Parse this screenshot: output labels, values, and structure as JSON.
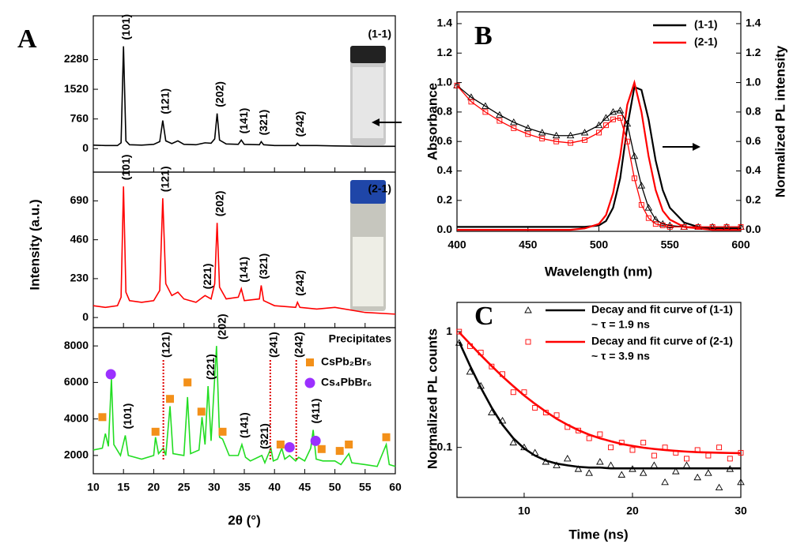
{
  "chart_data": [
    {
      "type": "line",
      "panel_label": "A",
      "title": "(1-1)",
      "color": "#000000",
      "xlim": [
        10,
        60
      ],
      "ylim": [
        -600,
        3400
      ],
      "yticks": [
        0,
        760,
        1520,
        2280
      ],
      "x": [
        10,
        12,
        14,
        14.6,
        15,
        15.4,
        16,
        18,
        20,
        21,
        21.5,
        22,
        23,
        24,
        25,
        27,
        28.5,
        29.5,
        30.1,
        30.5,
        30.9,
        32,
        34,
        34.5,
        35,
        37.5,
        37.8,
        38.2,
        40,
        43.5,
        43.8,
        44.2,
        47,
        50,
        55,
        60
      ],
      "values": [
        90,
        80,
        80,
        150,
        2620,
        200,
        100,
        90,
        110,
        180,
        720,
        200,
        130,
        200,
        110,
        100,
        150,
        140,
        250,
        900,
        220,
        120,
        110,
        220,
        110,
        100,
        180,
        100,
        80,
        80,
        140,
        80,
        80,
        70,
        60,
        60
      ],
      "peak_labels": [
        {
          "label": "(101)",
          "x": 15
        },
        {
          "label": "(121)",
          "x": 21.5
        },
        {
          "label": "(202)",
          "x": 30.5
        },
        {
          "label": "(141)",
          "x": 34.5
        },
        {
          "label": "(321)",
          "x": 37.8
        },
        {
          "label": "(242)",
          "x": 43.8
        }
      ]
    },
    {
      "type": "line",
      "title": "(2-1)",
      "ylabel": "Intensity (a.u.)",
      "color": "#ff0000",
      "xlim": [
        10,
        60
      ],
      "ylim": [
        -60,
        860
      ],
      "yticks": [
        0,
        230,
        460,
        690
      ],
      "x": [
        10,
        12,
        14,
        14.6,
        15,
        15.4,
        16,
        18,
        20,
        21,
        21.5,
        22,
        23,
        24,
        25,
        27,
        28.5,
        29.5,
        30.1,
        30.5,
        30.9,
        32,
        34,
        34.5,
        35,
        37.5,
        37.8,
        38.2,
        40,
        43.5,
        43.8,
        44.2,
        47,
        50,
        55,
        60
      ],
      "values": [
        70,
        60,
        70,
        120,
        775,
        150,
        100,
        90,
        100,
        160,
        705,
        200,
        130,
        150,
        110,
        90,
        130,
        110,
        200,
        560,
        180,
        110,
        120,
        170,
        100,
        110,
        190,
        100,
        70,
        60,
        90,
        60,
        50,
        60,
        30,
        20
      ],
      "peak_labels": [
        {
          "label": "(101)",
          "x": 15
        },
        {
          "label": "(121)",
          "x": 21.5
        },
        {
          "label": "(221)",
          "x": 28.5
        },
        {
          "label": "(202)",
          "x": 30.5
        },
        {
          "label": "(141)",
          "x": 34.5
        },
        {
          "label": "(321)",
          "x": 37.8
        },
        {
          "label": "(242)",
          "x": 43.8
        }
      ]
    },
    {
      "type": "line",
      "title": "Precipitates",
      "xlabel": "2θ (°)",
      "color": "#22dd22",
      "xlim": [
        10,
        60
      ],
      "ylim": [
        1000,
        9000
      ],
      "yticks": [
        2000,
        4000,
        6000,
        8000
      ],
      "xticks": [
        10,
        15,
        20,
        25,
        30,
        35,
        40,
        45,
        50,
        55,
        60
      ],
      "x": [
        10,
        11.5,
        12,
        12.5,
        13,
        13.4,
        14.5,
        15.3,
        15.8,
        18,
        20,
        20.3,
        20.8,
        21.6,
        22,
        22.7,
        23.2,
        25,
        25.6,
        26.1,
        27.5,
        28,
        28.5,
        29,
        29.5,
        30.4,
        30.9,
        31.4,
        32.5,
        34,
        34.6,
        35.2,
        36,
        37.9,
        38.4,
        39.4,
        39.8,
        40.5,
        41.2,
        41.7,
        42.5,
        43.5,
        44,
        45,
        46,
        46.4,
        46.9,
        48,
        50,
        51,
        52.3,
        52.8,
        55,
        57,
        58.5,
        59,
        60
      ],
      "values": [
        2300,
        2400,
        3200,
        2500,
        6200,
        2600,
        2000,
        3100,
        2000,
        1800,
        2000,
        3000,
        2100,
        2400,
        2000,
        4700,
        2100,
        2000,
        5200,
        2100,
        2300,
        4100,
        2600,
        5800,
        2800,
        8000,
        3000,
        2900,
        2000,
        2000,
        2600,
        1900,
        1700,
        2000,
        1600,
        2400,
        1700,
        1800,
        2400,
        1800,
        2000,
        1700,
        1900,
        1700,
        2400,
        3400,
        1800,
        1700,
        1700,
        1500,
        2100,
        1600,
        1500,
        1400,
        2600,
        1500,
        1400
      ],
      "markers": [
        {
          "name": "CsPb₂Br₅",
          "color": "#f39019",
          "shape": "square",
          "x": [
            11.5,
            20.3,
            22.7,
            25.6,
            27.9,
            31.4,
            41,
            47.8,
            50.8,
            52.3,
            58.5
          ],
          "values": [
            4100,
            3300,
            5100,
            6000,
            4400,
            3300,
            2600,
            2350,
            2250,
            2600,
            3000
          ]
        },
        {
          "name": "Cs₄PbBr₆",
          "color": "#9b30ff",
          "shape": "circle",
          "x": [
            12.9,
            42.5,
            46.8
          ],
          "values": [
            6450,
            2450,
            2800
          ]
        }
      ],
      "ref_lines": {
        "color": "#e00000",
        "x": [
          21.6,
          39.3,
          43.6
        ]
      },
      "peak_labels": [
        {
          "label": "(101)",
          "x": 15.3
        },
        {
          "label": "(121)",
          "x": 21.6
        },
        {
          "label": "(221)",
          "x": 29
        },
        {
          "label": "(202)",
          "x": 30.9
        },
        {
          "label": "(141)",
          "x": 34.6
        },
        {
          "label": "(321)",
          "x": 37.9
        },
        {
          "label": "(241)",
          "x": 39.4
        },
        {
          "label": "(242)",
          "x": 43.6
        },
        {
          "label": "(411)",
          "x": 46.4
        }
      ]
    },
    {
      "type": "line",
      "panel_label": "B",
      "xlabel": "Wavelength (nm)",
      "ylabel": "Absorbance",
      "y2label": "Normalized PL intensity",
      "legend": "upper right",
      "xlim": [
        400,
        600
      ],
      "ylim": [
        -0.01,
        1.48
      ],
      "y2lim": [
        -0.01,
        1.48
      ],
      "xticks": [
        400,
        450,
        500,
        550,
        600
      ],
      "yticks": [
        {
          "value": 0,
          "label": "0.0"
        },
        0.2,
        0.4,
        0.6,
        0.8,
        {
          "value": 1,
          "label": "1.0"
        },
        1.2,
        1.4
      ],
      "y2ticks": [
        {
          "value": 0,
          "label": "0.0"
        },
        0.2,
        0.4,
        0.6,
        0.8,
        {
          "value": 1,
          "label": "1.0"
        },
        1.2,
        1.4
      ],
      "x": [
        400,
        410,
        420,
        430,
        440,
        450,
        460,
        470,
        480,
        490,
        500,
        505,
        510,
        515,
        520,
        525,
        530,
        535,
        540,
        545,
        550,
        560,
        570,
        580,
        590,
        600
      ],
      "series": [
        {
          "name": "(1-1)",
          "color": "#000000",
          "marker": "triangle",
          "values": [
            0.98,
            0.9,
            0.84,
            0.78,
            0.73,
            0.69,
            0.66,
            0.64,
            0.64,
            0.66,
            0.71,
            0.76,
            0.8,
            0.81,
            0.72,
            0.5,
            0.3,
            0.15,
            0.07,
            0.04,
            0.03,
            0.02,
            0.02,
            0.02,
            0.02,
            0.02
          ]
        },
        {
          "name": "(2-1)",
          "color": "#ff0000",
          "marker": "square",
          "values": [
            0.98,
            0.87,
            0.8,
            0.74,
            0.69,
            0.65,
            0.62,
            0.6,
            0.59,
            0.61,
            0.66,
            0.71,
            0.75,
            0.76,
            0.6,
            0.35,
            0.17,
            0.08,
            0.04,
            0.03,
            0.02,
            0.02,
            0.02,
            0.02,
            0.02,
            0.02
          ]
        }
      ],
      "y2_series": [
        {
          "color": "#000000",
          "axis": "y2",
          "values": [
            0.02,
            0.02,
            0.02,
            0.02,
            0.02,
            0.02,
            0.02,
            0.02,
            0.02,
            0.02,
            0.03,
            0.06,
            0.15,
            0.35,
            0.7,
            0.97,
            0.95,
            0.75,
            0.47,
            0.27,
            0.15,
            0.05,
            0.02,
            0.01,
            0.01,
            0.01
          ]
        },
        {
          "color": "#ff0000",
          "axis": "y2",
          "values": [
            0,
            0,
            0,
            0,
            0,
            0,
            0,
            0,
            0,
            0.01,
            0.04,
            0.1,
            0.25,
            0.5,
            0.85,
            1,
            0.8,
            0.5,
            0.27,
            0.13,
            0.07,
            0.02,
            0.01,
            0,
            0,
            0
          ]
        }
      ]
    },
    {
      "type": "scatter",
      "panel_label": "C",
      "xlabel": "Time (ns)",
      "ylabel": "Normalized PL counts",
      "log_y": true,
      "xlim": [
        3.8,
        30
      ],
      "ylim": [
        0.037,
        1.79
      ],
      "xticks": [
        10,
        20,
        30
      ],
      "yticks": [
        0.1,
        1
      ],
      "x": [
        4,
        5,
        6,
        7,
        8,
        9,
        10,
        11,
        12,
        13,
        14,
        15,
        16,
        17,
        18,
        19,
        20,
        21,
        22,
        23,
        24,
        25,
        26,
        27,
        28,
        29,
        30
      ],
      "series": [
        {
          "name": "Decay and fit curve of (1-1)",
          "annotation": "~ τ = 1.9 ns",
          "color": "#000000",
          "marker": "triangle",
          "values": [
            0.8,
            0.45,
            0.34,
            0.2,
            0.17,
            0.11,
            0.1,
            0.09,
            0.075,
            0.07,
            0.08,
            0.065,
            0.06,
            0.075,
            0.07,
            0.058,
            0.065,
            0.06,
            0.07,
            0.05,
            0.062,
            0.07,
            0.055,
            0.06,
            0.045,
            0.065,
            0.05
          ],
          "fit": [
            0.816,
            0.509,
            0.328,
            0.221,
            0.157,
            0.12,
            0.098,
            0.085,
            0.077,
            0.0725,
            0.07,
            0.068,
            0.067,
            0.067,
            0.066,
            0.066,
            0.066,
            0.066,
            0.066,
            0.066,
            0.066,
            0.066,
            0.066,
            0.066,
            0.066,
            0.066,
            0.066
          ]
        },
        {
          "name": "Decay and fit curve of (2-1)",
          "annotation": "~ τ = 3.9 ns",
          "color": "#ff0000",
          "marker": "square",
          "values": [
            1,
            0.75,
            0.66,
            0.5,
            0.43,
            0.3,
            0.3,
            0.22,
            0.2,
            0.19,
            0.15,
            0.14,
            0.12,
            0.13,
            0.1,
            0.11,
            0.095,
            0.11,
            0.085,
            0.1,
            0.09,
            0.08,
            0.095,
            0.085,
            0.1,
            0.08,
            0.09
          ],
          "fit": [
            0.988,
            0.785,
            0.627,
            0.505,
            0.41,
            0.338,
            0.281,
            0.238,
            0.204,
            0.177,
            0.157,
            0.141,
            0.129,
            0.12,
            0.113,
            0.107,
            0.103,
            0.0995,
            0.097,
            0.095,
            0.0934,
            0.092,
            0.091,
            0.0905,
            0.09,
            0.0895,
            0.0892
          ]
        }
      ]
    }
  ]
}
